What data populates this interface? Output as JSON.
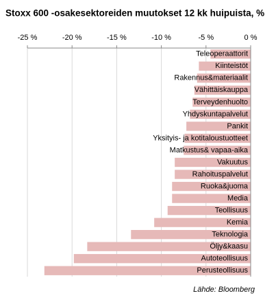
{
  "chart_data": {
    "type": "bar",
    "orientation": "horizontal",
    "title": "Stoxx 600 -osakesektoreiden muutokset 12 kk huipuista, %",
    "source": "Lähde: Bloomberg",
    "categories": [
      "Teleoperaattorit",
      "Kiinteistöt",
      "Rakennus&materiaalit",
      "Vähittäiskauppa",
      "Terveydenhuolto",
      "Yhdyskuntapalvelut",
      "Pankit",
      "Yksityis- ja kotitaloustuotteet",
      "Matkustus& vapaa-aika",
      "Vakuutus",
      "Rahoituspalvelut",
      "Ruoka&juoma",
      "Media",
      "Teollisuus",
      "Kemia",
      "Teknologia",
      "Öljy&kaasu",
      "Autoteollisuus",
      "Perusteollisuus"
    ],
    "values": [
      -4.5,
      -5.8,
      -6.0,
      -6.3,
      -6.5,
      -6.8,
      -7.2,
      -7.4,
      -7.5,
      -8.5,
      -8.5,
      -8.8,
      -8.8,
      -9.3,
      -10.8,
      -13.4,
      -18.3,
      -19.8,
      -23.1
    ],
    "color": "#e6b9b8",
    "xlim": [
      -25,
      0
    ],
    "xticks": [
      {
        "value": -25,
        "label": "-25 %"
      },
      {
        "value": -20,
        "label": "-20 %"
      },
      {
        "value": -15,
        "label": "-15 %"
      },
      {
        "value": -10,
        "label": "-10 %"
      },
      {
        "value": -5,
        "label": "-5 %"
      },
      {
        "value": 0,
        "label": "0 %"
      }
    ],
    "grid": true
  }
}
